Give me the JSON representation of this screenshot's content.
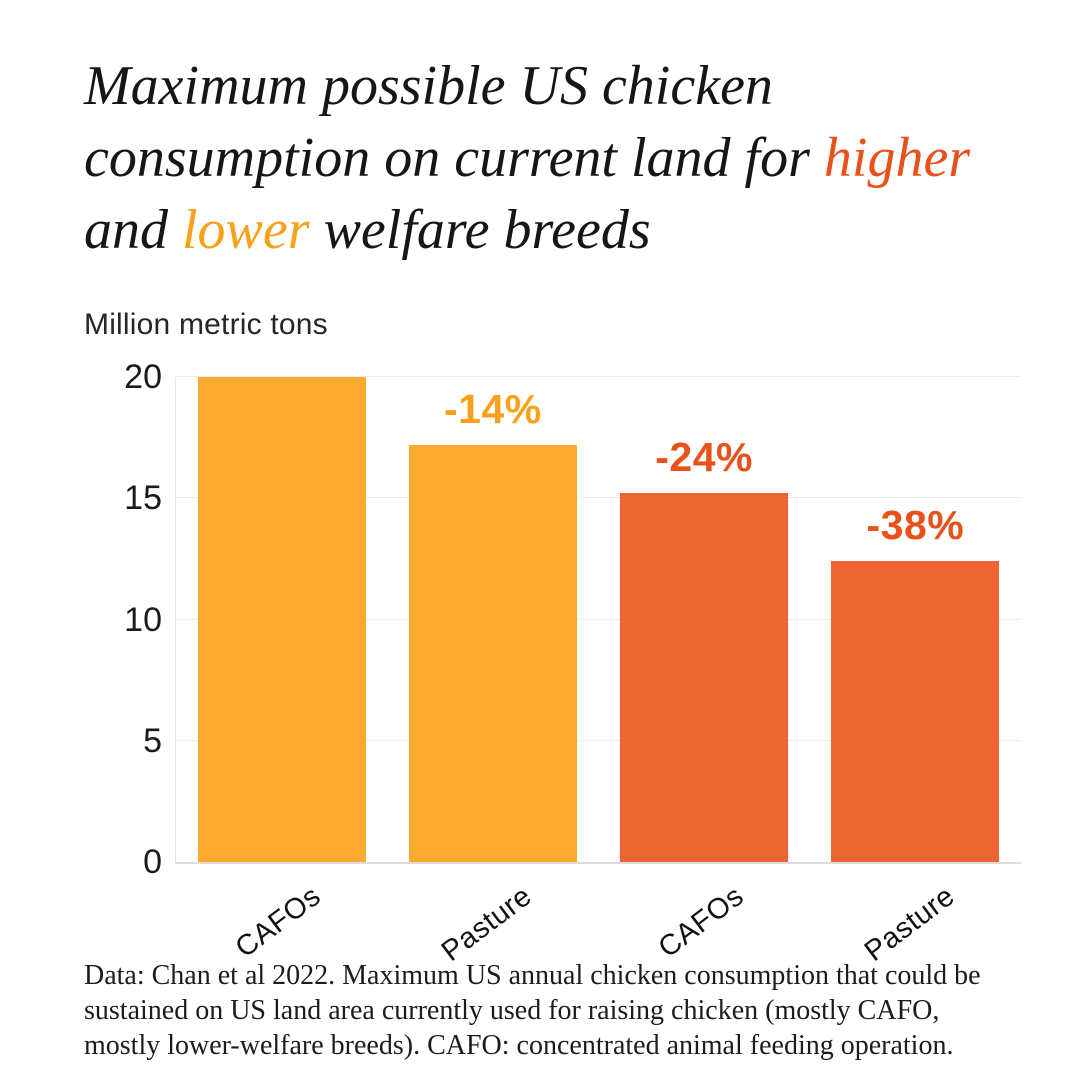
{
  "colors": {
    "dark": "#161616",
    "red_accent": "#E8511A",
    "yellow_accent": "#F9A11C",
    "yellow_bar": "#FCA930",
    "orange_bar": "#ED6632",
    "gridline": "#ededed"
  },
  "title": {
    "full_text": "Maximum possible US chicken consumption on current land for higher and lower welfare breeds",
    "lines": [
      [
        {
          "text": "Maximum possible US chicken",
          "color": "dark"
        }
      ],
      [
        {
          "text": "consumption on current land for ",
          "color": "dark"
        },
        {
          "text": "higher",
          "color": "red_accent"
        }
      ],
      [
        {
          "text": "and ",
          "color": "dark"
        },
        {
          "text": "lower",
          "color": "yellow_accent"
        },
        {
          "text": " welfare breeds",
          "color": "dark"
        }
      ]
    ]
  },
  "chart_data": {
    "type": "bar",
    "title": "Maximum possible US chicken consumption on current land for higher and lower welfare breeds",
    "ylabel": "Million metric tons",
    "categories": [
      "CAFOs",
      "Pasture",
      "CAFOs",
      "Pasture"
    ],
    "groups": [
      "lower welfare breeds",
      "lower welfare breeds",
      "higher welfare breeds",
      "higher welfare breeds"
    ],
    "values": [
      20,
      17.2,
      15.2,
      12.4
    ],
    "bar_colors": [
      "#FCA930",
      "#FCA930",
      "#ED6632",
      "#ED6632"
    ],
    "annotations": [
      "",
      "-14%",
      "-24%",
      "-38%"
    ],
    "annotation_colors": [
      "",
      "#F9A11C",
      "#E8511A",
      "#E8511A"
    ],
    "yticks": [
      0,
      5,
      10,
      15,
      20
    ],
    "ylim": [
      0,
      20
    ],
    "grid": "horizontal",
    "legend": "none"
  },
  "caption": {
    "lines": [
      "Data: Chan et al 2022. Maximum US annual chicken consumption that could be",
      "sustained on US land area currently used for raising chicken (mostly CAFO,",
      "mostly lower-welfare breeds). CAFO: concentrated animal feeding operation."
    ]
  }
}
